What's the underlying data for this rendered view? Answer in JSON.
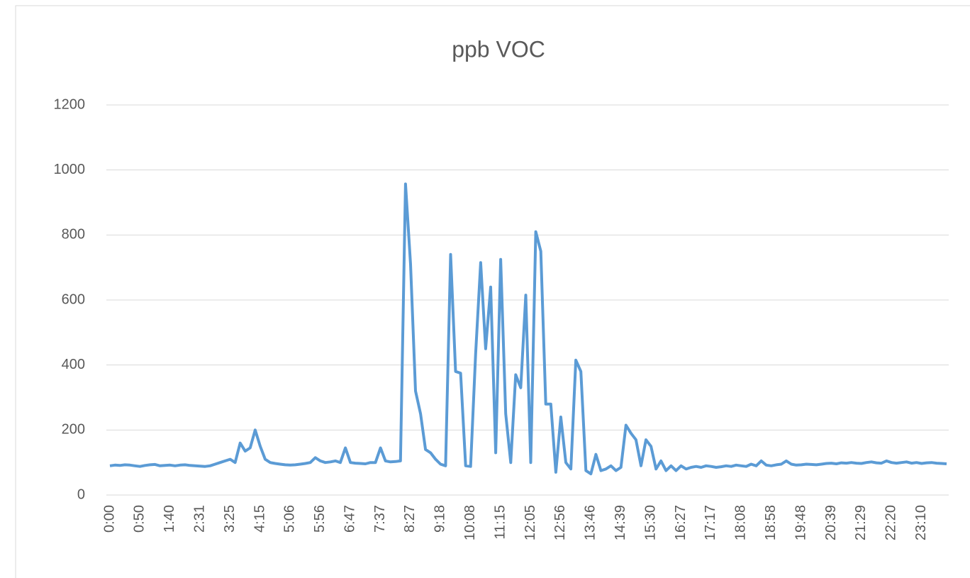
{
  "chart_data": {
    "type": "line",
    "title": "ppb VOC",
    "categories": [
      "0:00",
      null,
      null,
      null,
      null,
      null,
      "0:50",
      null,
      null,
      null,
      null,
      null,
      "1:40",
      null,
      null,
      null,
      null,
      null,
      "2:31",
      null,
      null,
      null,
      null,
      null,
      "3:25",
      null,
      null,
      null,
      null,
      null,
      "4:15",
      null,
      null,
      null,
      null,
      null,
      "5:06",
      null,
      null,
      null,
      null,
      null,
      "5:56",
      null,
      null,
      null,
      null,
      null,
      "6:47",
      null,
      null,
      null,
      null,
      null,
      "7:37",
      null,
      null,
      null,
      null,
      null,
      "8:27",
      null,
      null,
      null,
      null,
      null,
      "9:18",
      null,
      null,
      null,
      null,
      null,
      "10:08",
      null,
      null,
      null,
      null,
      null,
      "11:15",
      null,
      null,
      null,
      null,
      null,
      "12:05",
      null,
      null,
      null,
      null,
      null,
      "12:56",
      null,
      null,
      null,
      null,
      null,
      "13:46",
      null,
      null,
      null,
      null,
      null,
      "14:39",
      null,
      null,
      null,
      null,
      null,
      "15:30",
      null,
      null,
      null,
      null,
      null,
      "16:27",
      null,
      null,
      null,
      null,
      null,
      "17:17",
      null,
      null,
      null,
      null,
      null,
      "18:08",
      null,
      null,
      null,
      null,
      null,
      "18:58",
      null,
      null,
      null,
      null,
      null,
      "19:48",
      null,
      null,
      null,
      null,
      null,
      "20:39",
      null,
      null,
      null,
      null,
      null,
      "21:29",
      null,
      null,
      null,
      null,
      null,
      "22:20",
      null,
      null,
      null,
      null,
      null,
      "23:10",
      null,
      null,
      null,
      null,
      null
    ],
    "series": [
      {
        "color": "#5b9bd5",
        "values": [
          90,
          92,
          91,
          93,
          92,
          90,
          88,
          91,
          93,
          94,
          90,
          91,
          92,
          90,
          92,
          93,
          91,
          90,
          89,
          88,
          90,
          95,
          100,
          105,
          110,
          100,
          160,
          135,
          145,
          200,
          150,
          110,
          100,
          97,
          95,
          93,
          92,
          93,
          95,
          97,
          100,
          115,
          105,
          100,
          102,
          105,
          100,
          145,
          100,
          98,
          97,
          96,
          100,
          100,
          145,
          105,
          102,
          103,
          105,
          957,
          710,
          320,
          250,
          140,
          130,
          110,
          95,
          90,
          740,
          380,
          375,
          90,
          88,
          435,
          715,
          450,
          640,
          130,
          725,
          250,
          100,
          370,
          330,
          615,
          100,
          810,
          750,
          280,
          280,
          70,
          240,
          100,
          80,
          415,
          380,
          75,
          65,
          125,
          75,
          80,
          90,
          75,
          85,
          215,
          190,
          170,
          90,
          170,
          150,
          80,
          105,
          75,
          90,
          75,
          90,
          80,
          85,
          88,
          85,
          90,
          88,
          85,
          87,
          90,
          88,
          92,
          90,
          88,
          95,
          90,
          105,
          92,
          90,
          93,
          95,
          105,
          95,
          92,
          93,
          95,
          94,
          93,
          95,
          97,
          98,
          96,
          99,
          98,
          100,
          98,
          97,
          100,
          102,
          99,
          98,
          105,
          100,
          98,
          100,
          102,
          98,
          100,
          97,
          99,
          100,
          98,
          97,
          96
        ]
      }
    ],
    "ylim": [
      0,
      1200
    ],
    "yticks": [
      0,
      200,
      400,
      600,
      800,
      1000,
      1200
    ],
    "grid": true
  }
}
